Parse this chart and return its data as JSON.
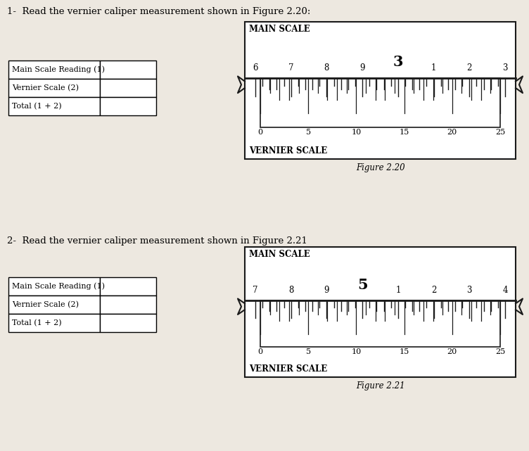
{
  "bg_color": "#ede8e0",
  "question1_text": "1-  Read the vernier caliper measurement shown in Figure 2.20:",
  "question2_text": "2-  Read the vernier caliper measurement shown in Figure 2.21",
  "figure1_caption": "Figure 2.20",
  "figure2_caption": "Figure 2.21",
  "table_rows": [
    "Main Scale Reading (1)",
    "Vernier Scale (2)",
    "Total (1 + 2)"
  ],
  "fig1": {
    "main_scale_labels": [
      "6",
      "7",
      "8",
      "9",
      "3",
      "1",
      "2",
      "3"
    ],
    "main_scale_highlight_idx": 4,
    "vernier_scale_labels": [
      "0",
      "5",
      "10",
      "15",
      "20",
      "25"
    ],
    "vernier_scale_positions": [
      0,
      5,
      10,
      15,
      20,
      25
    ]
  },
  "fig2": {
    "main_scale_labels": [
      "7",
      "8",
      "9",
      "5",
      "1",
      "2",
      "3",
      "4"
    ],
    "main_scale_highlight_idx": 3,
    "vernier_scale_labels": [
      "0",
      "5",
      "10",
      "15",
      "20",
      "25"
    ],
    "vernier_scale_positions": [
      0,
      5,
      10,
      15,
      20,
      25
    ]
  },
  "text_color": "#000000",
  "scale_color": "#1a1a1a",
  "box_facecolor": "#ffffff",
  "font_family": "DejaVu Serif"
}
